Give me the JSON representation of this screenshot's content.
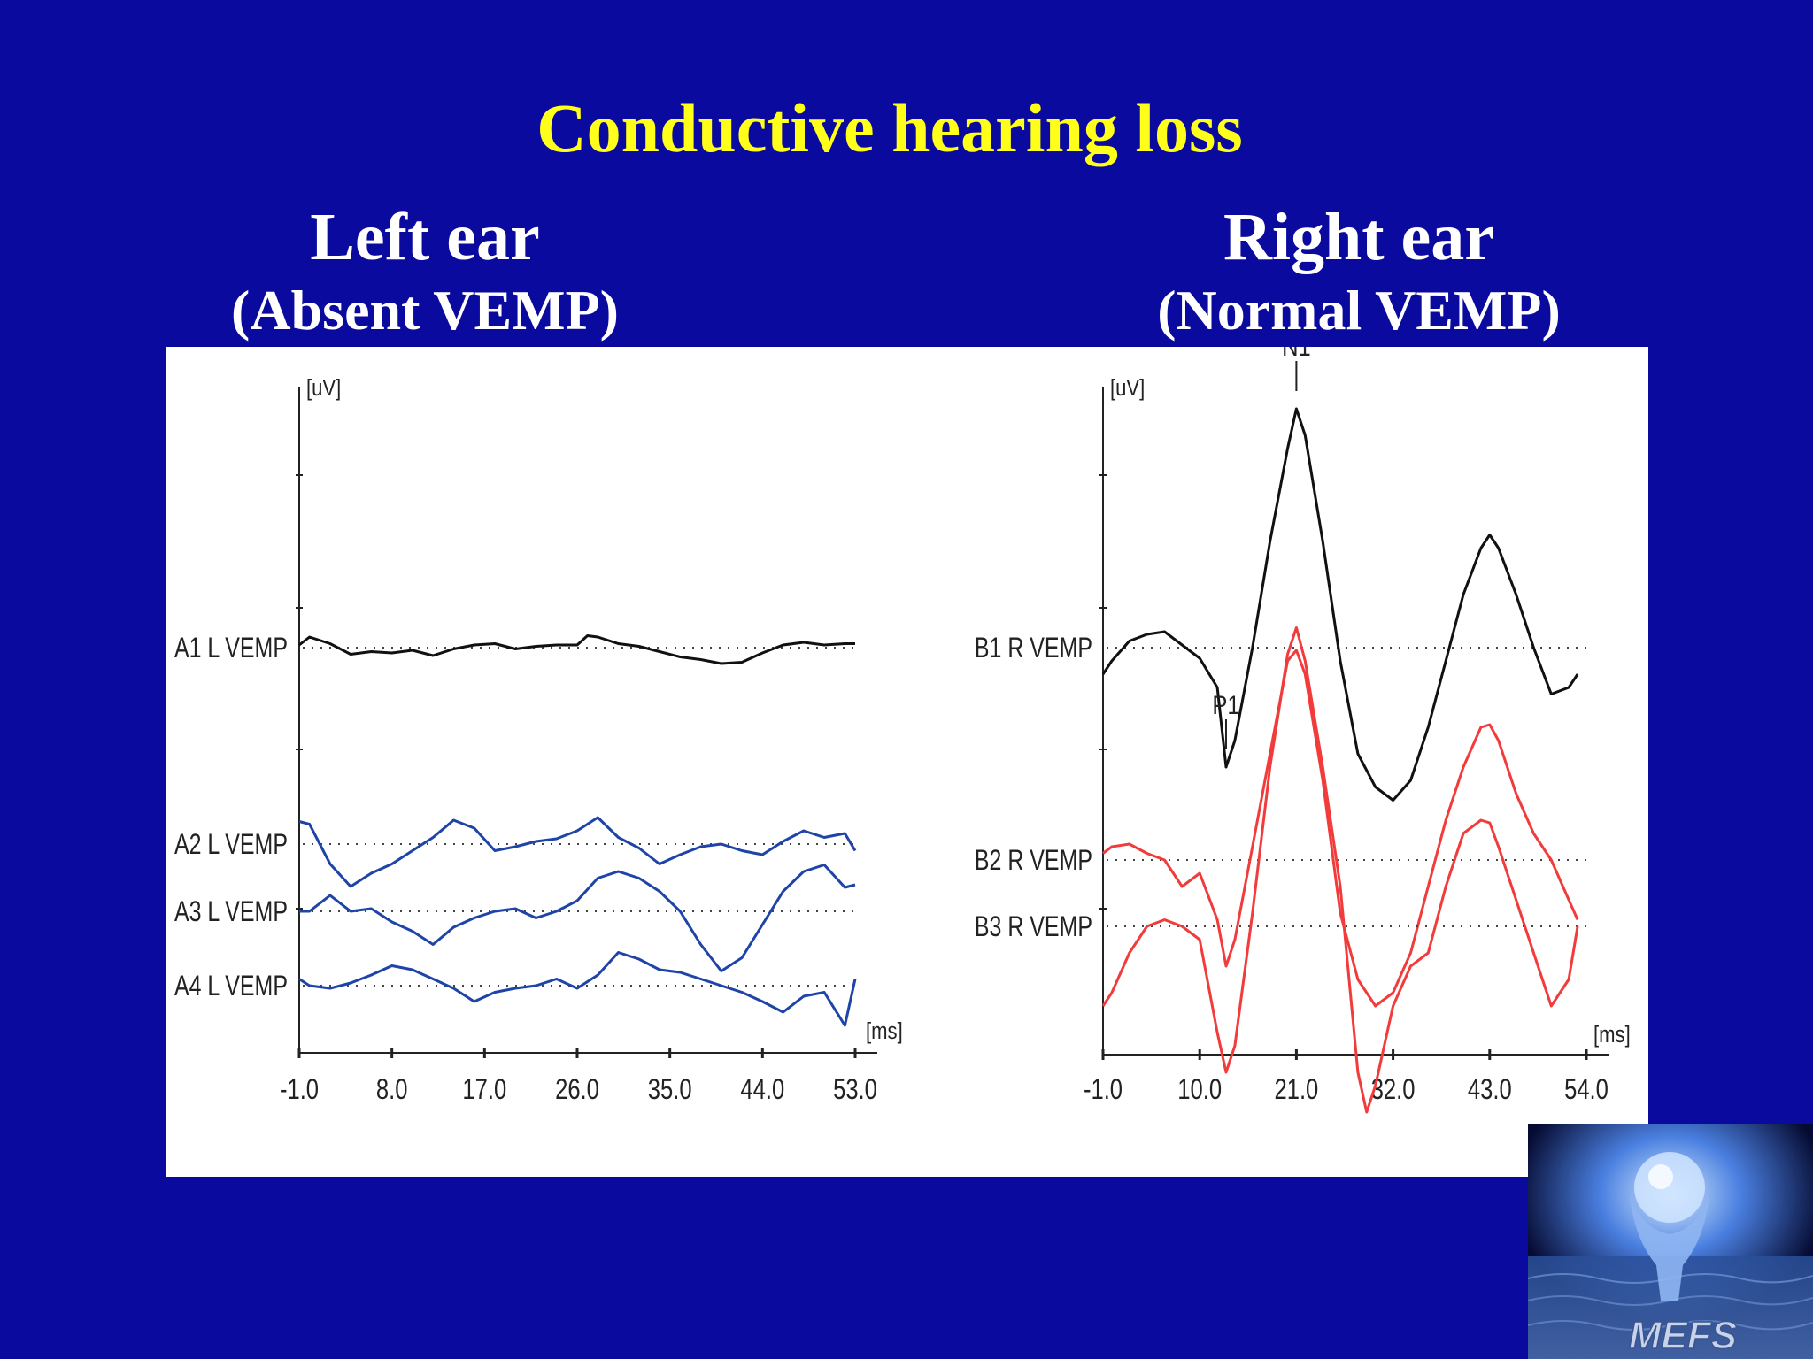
{
  "slide": {
    "title": "Conductive hearing loss"
  },
  "left_header": {
    "title": "Left ear",
    "subtitle": "(Absent VEMP)"
  },
  "right_header": {
    "title": "Right ear",
    "subtitle": "(Normal VEMP)"
  },
  "logo": {
    "text": "MEFS",
    "icon": "hands-holding-globe-logo"
  },
  "colors": {
    "background": "#0a0a9e",
    "title": "#ffff1a",
    "black_trace": "#111111",
    "blue_trace": "#1f44a8",
    "red_trace": "#f23b3b"
  },
  "chart_data": [
    {
      "type": "line",
      "title": "",
      "xlabel": "[ms]",
      "ylabel": "[uV]",
      "x_ticks": [
        "-1.0",
        "8.0",
        "17.0",
        "26.0",
        "35.0",
        "44.0",
        "53.0"
      ],
      "xlim": [
        -1,
        53
      ],
      "ylim": [
        -3.5,
        2
      ],
      "grid": false,
      "series": [
        {
          "name": "A1 L VEMP",
          "color": "#111111",
          "baseline": 0,
          "x": [
            -1,
            0,
            2,
            4,
            6,
            8,
            10,
            12,
            14,
            16,
            18,
            20,
            22,
            24,
            26,
            27,
            28,
            30,
            32,
            34,
            36,
            38,
            40,
            42,
            44,
            46,
            48,
            50,
            52,
            53
          ],
          "y": [
            0.02,
            0.08,
            0.03,
            -0.05,
            -0.03,
            -0.04,
            -0.02,
            -0.06,
            -0.01,
            0.02,
            0.03,
            -0.01,
            0.01,
            0.02,
            0.02,
            0.09,
            0.08,
            0.03,
            0.01,
            -0.03,
            -0.07,
            -0.09,
            -0.12,
            -0.11,
            -0.04,
            0.02,
            0.04,
            0.02,
            0.03,
            0.03
          ]
        },
        {
          "name": "A2 L VEMP",
          "color": "#1f44a8",
          "baseline": -2.0,
          "x": [
            -1,
            0,
            2,
            4,
            6,
            8,
            10,
            12,
            14,
            16,
            18,
            20,
            22,
            24,
            26,
            28,
            30,
            32,
            34,
            36,
            38,
            40,
            42,
            44,
            46,
            48,
            50,
            52,
            53
          ],
          "y": [
            0.17,
            0.15,
            -0.15,
            -0.32,
            -0.22,
            -0.15,
            -0.05,
            0.05,
            0.18,
            0.12,
            -0.05,
            -0.02,
            0.02,
            0.04,
            0.1,
            0.2,
            0.05,
            -0.03,
            -0.15,
            -0.08,
            -0.02,
            0.0,
            -0.05,
            -0.08,
            0.02,
            0.1,
            0.05,
            0.08,
            -0.05
          ]
        },
        {
          "name": "A3 L VEMP",
          "color": "#1f44a8",
          "baseline": -2.7,
          "x": [
            -1,
            0,
            2,
            4,
            6,
            8,
            10,
            12,
            14,
            16,
            18,
            20,
            22,
            24,
            26,
            28,
            30,
            32,
            34,
            36,
            38,
            40,
            42,
            44,
            46,
            48,
            50,
            52,
            53
          ],
          "y": [
            0.0,
            0.0,
            0.12,
            0.0,
            0.02,
            -0.08,
            -0.15,
            -0.25,
            -0.12,
            -0.05,
            0.0,
            0.02,
            -0.05,
            0.0,
            0.08,
            0.25,
            0.3,
            0.25,
            0.15,
            0.0,
            -0.25,
            -0.45,
            -0.35,
            -0.1,
            0.15,
            0.3,
            0.35,
            0.18,
            0.2
          ]
        },
        {
          "name": "A4 L VEMP",
          "color": "#1f44a8",
          "baseline": -3.5,
          "x": [
            -1,
            0,
            2,
            4,
            6,
            8,
            10,
            12,
            14,
            16,
            18,
            20,
            22,
            24,
            26,
            28,
            30,
            32,
            34,
            36,
            38,
            40,
            42,
            44,
            46,
            48,
            50,
            52,
            53
          ],
          "y": [
            0.05,
            0.0,
            -0.02,
            0.02,
            0.08,
            0.15,
            0.12,
            0.05,
            -0.02,
            -0.12,
            -0.05,
            -0.02,
            0.0,
            0.05,
            -0.02,
            0.08,
            0.25,
            0.2,
            0.12,
            0.1,
            0.05,
            0.0,
            -0.05,
            -0.12,
            -0.2,
            -0.08,
            -0.05,
            -0.3,
            0.05
          ]
        }
      ]
    },
    {
      "type": "line",
      "title": "",
      "xlabel": "[ms]",
      "ylabel": "[uV]",
      "x_ticks": [
        "-1.0",
        "10.0",
        "21.0",
        "32.0",
        "43.0",
        "54.0"
      ],
      "xlim": [
        -1,
        54
      ],
      "ylim": [
        -3.5,
        2
      ],
      "grid": false,
      "annotations": [
        {
          "label": "N1",
          "x": 21,
          "y": 2.2
        },
        {
          "label": "P1",
          "x": 13,
          "y": -0.5
        }
      ],
      "series": [
        {
          "name": "B1 R VEMP",
          "color": "#111111",
          "baseline": 0,
          "x": [
            -1,
            0,
            2,
            4,
            6,
            8,
            10,
            12,
            13,
            14,
            16,
            18,
            20,
            21,
            22,
            24,
            26,
            28,
            30,
            32,
            34,
            36,
            38,
            40,
            42,
            43,
            44,
            46,
            48,
            50,
            52,
            53
          ],
          "y": [
            -0.2,
            -0.1,
            0.05,
            0.1,
            0.12,
            0.02,
            -0.08,
            -0.3,
            -0.9,
            -0.7,
            0.0,
            0.8,
            1.5,
            1.8,
            1.6,
            0.8,
            -0.1,
            -0.8,
            -1.05,
            -1.15,
            -1.0,
            -0.6,
            -0.1,
            0.4,
            0.75,
            0.85,
            0.75,
            0.4,
            0.0,
            -0.35,
            -0.3,
            -0.2
          ]
        },
        {
          "name": "B2 R VEMP",
          "color": "#f23b3b",
          "baseline": -2.35,
          "x": [
            -1,
            0,
            2,
            4,
            6,
            8,
            10,
            12,
            13,
            14,
            16,
            18,
            20,
            21,
            22,
            24,
            26,
            28,
            30,
            32,
            34,
            36,
            38,
            40,
            42,
            43,
            44,
            46,
            48,
            50,
            52,
            53
          ],
          "y": [
            0.05,
            0.1,
            0.12,
            0.05,
            0.0,
            -0.2,
            -0.1,
            -0.45,
            -0.8,
            -0.6,
            0.1,
            0.8,
            1.5,
            1.58,
            1.4,
            0.6,
            -0.4,
            -0.9,
            -1.1,
            -1.0,
            -0.7,
            -0.2,
            0.3,
            0.7,
            1.0,
            1.02,
            0.9,
            0.5,
            0.2,
            0.0,
            -0.3,
            -0.45
          ]
        },
        {
          "name": "B3 R VEMP",
          "color": "#f23b3b",
          "baseline": -3.1,
          "x": [
            -1,
            0,
            2,
            4,
            6,
            8,
            10,
            12,
            13,
            14,
            16,
            18,
            20,
            21,
            22,
            24,
            26,
            28,
            29,
            30,
            32,
            34,
            36,
            38,
            40,
            42,
            43,
            44,
            46,
            48,
            50,
            52,
            53
          ],
          "y": [
            -0.6,
            -0.5,
            -0.2,
            0.0,
            0.05,
            0.0,
            -0.1,
            -0.8,
            -1.1,
            -0.9,
            0.1,
            1.2,
            2.05,
            2.25,
            2.0,
            1.2,
            0.3,
            -1.1,
            -1.4,
            -1.2,
            -0.6,
            -0.3,
            -0.2,
            0.3,
            0.7,
            0.8,
            0.78,
            0.6,
            0.2,
            -0.2,
            -0.6,
            -0.4,
            0.0
          ]
        }
      ]
    }
  ]
}
